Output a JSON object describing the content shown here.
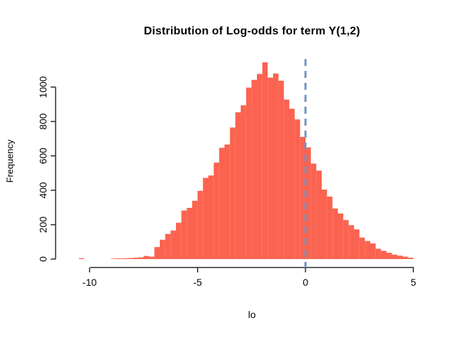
{
  "figure": {
    "title": "Distribution of Log-odds for term Y(1,2)",
    "xlabel": "lo",
    "ylabel": "Frequency"
  },
  "chart_data": {
    "type": "bar",
    "subtype": "histogram",
    "title": "Distribution of Log-odds for term Y(1,2)",
    "xlabel": "lo",
    "ylabel": "Frequency",
    "bin_start": -10.5,
    "bin_width": 0.25,
    "frequencies": [
      5,
      0,
      0,
      0,
      0,
      0,
      3,
      4,
      5,
      6,
      8,
      10,
      18,
      14,
      70,
      112,
      146,
      166,
      211,
      282,
      298,
      339,
      397,
      472,
      486,
      561,
      647,
      666,
      765,
      853,
      894,
      997,
      1042,
      1076,
      1144,
      1055,
      1079,
      1037,
      927,
      874,
      812,
      710,
      649,
      555,
      514,
      404,
      363,
      294,
      265,
      227,
      197,
      173,
      125,
      105,
      91,
      60,
      48,
      37,
      26,
      20,
      14,
      8
    ],
    "x_ticks": [
      -10,
      -5,
      0,
      5
    ],
    "y_ticks": [
      0,
      200,
      400,
      600,
      800,
      1000
    ],
    "xlim": [
      -10.5,
      5
    ],
    "ylim": [
      0,
      1150
    ],
    "grid": false,
    "legend": "none",
    "vline_x": 0,
    "bar_color": "#FB6350",
    "vline_color": "#7093BD",
    "vline_style": "dashed",
    "axis_color": "#2b2b2b",
    "text_color": "#000000"
  }
}
